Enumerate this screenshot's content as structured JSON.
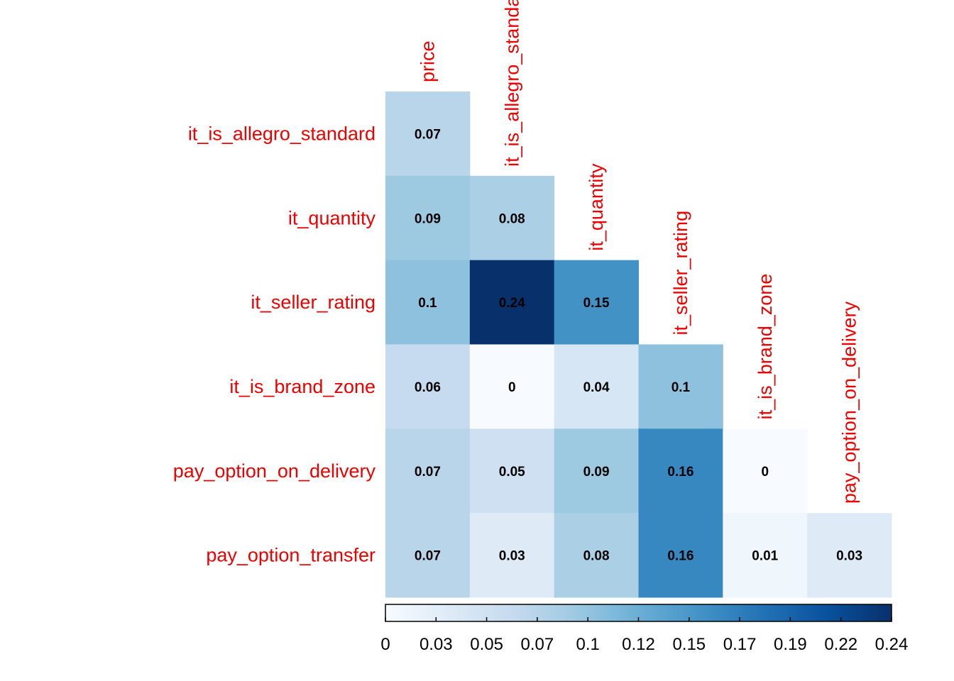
{
  "chart_data": {
    "type": "heatmap",
    "title": "",
    "rows": [
      "it_is_allegro_standard",
      "it_quantity",
      "it_seller_rating",
      "it_is_brand_zone",
      "pay_option_on_delivery",
      "pay_option_transfer"
    ],
    "columns": [
      "price",
      "it_is_allegro_standard",
      "it_quantity",
      "it_seller_rating",
      "it_is_brand_zone",
      "pay_option_on_delivery"
    ],
    "values": [
      [
        0.07,
        null,
        null,
        null,
        null,
        null
      ],
      [
        0.09,
        0.08,
        null,
        null,
        null,
        null
      ],
      [
        0.1,
        0.24,
        0.15,
        null,
        null,
        null
      ],
      [
        0.06,
        0,
        0.04,
        0.1,
        null,
        null
      ],
      [
        0.07,
        0.05,
        0.09,
        0.16,
        0,
        null
      ],
      [
        0.07,
        0.03,
        0.08,
        0.16,
        0.01,
        0.03
      ]
    ],
    "cell_labels": [
      [
        "0.07",
        null,
        null,
        null,
        null,
        null
      ],
      [
        "0.09",
        "0.08",
        null,
        null,
        null,
        null
      ],
      [
        "0.1",
        "0.24",
        "0.15",
        null,
        null,
        null
      ],
      [
        "0.06",
        "0",
        "0.04",
        "0.1",
        null,
        null
      ],
      [
        "0.07",
        "0.05",
        "0.09",
        "0.16",
        "0",
        null
      ],
      [
        "0.07",
        "0.03",
        "0.08",
        "0.16",
        "0.01",
        "0.03"
      ]
    ],
    "colorbar": {
      "range": [
        0,
        0.24
      ],
      "ticks": [
        0,
        0.03,
        0.05,
        0.07,
        0.1,
        0.12,
        0.15,
        0.17,
        0.19,
        0.22,
        0.24
      ],
      "tick_labels": [
        "0",
        "0.03",
        "0.05",
        "0.07",
        "0.1",
        "0.12",
        "0.15",
        "0.17",
        "0.19",
        "0.22",
        "0.24"
      ],
      "placement": "bottom",
      "colors": [
        "#f7fbff",
        "#deebf7",
        "#c6dbef",
        "#9ecae1",
        "#6baed6",
        "#4292c6",
        "#2171b5",
        "#08519c",
        "#08306b"
      ]
    },
    "label_color": "#ee0000"
  }
}
